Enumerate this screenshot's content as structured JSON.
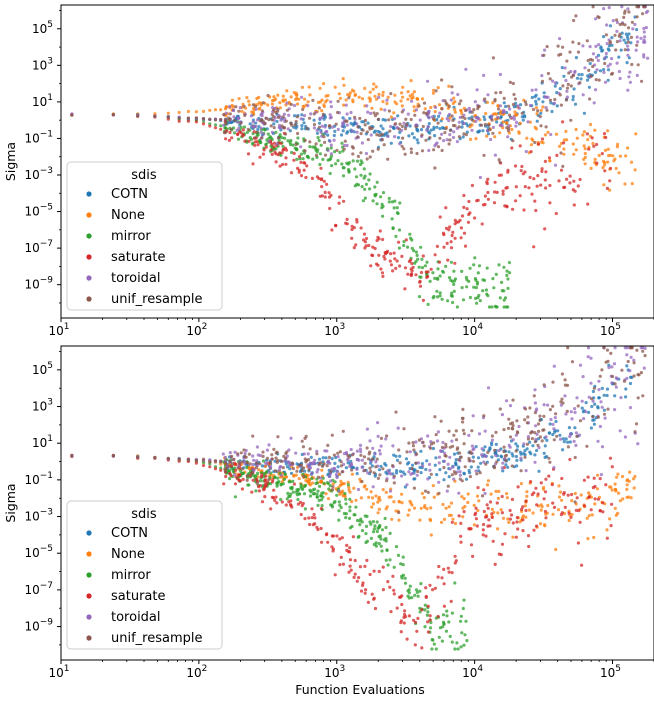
{
  "chart_data": [
    {
      "type": "scatter",
      "panel": "top",
      "xlabel": "",
      "ylabel": "Sigma",
      "xscale": "log",
      "yscale": "log",
      "xlim": [
        10,
        200000
      ],
      "ylim": [
        1.5e-11,
        2000000
      ],
      "x_ticks": [
        {
          "value": 10,
          "base": "10",
          "exp": "1"
        },
        {
          "value": 100,
          "base": "10",
          "exp": "2"
        },
        {
          "value": 1000,
          "base": "10",
          "exp": "3"
        },
        {
          "value": 10000,
          "base": "10",
          "exp": "4"
        },
        {
          "value": 100000,
          "base": "10",
          "exp": "5"
        }
      ],
      "y_ticks": [
        {
          "value": 1e-09,
          "base": "10",
          "exp": "−9"
        },
        {
          "value": 1e-07,
          "base": "10",
          "exp": "−7"
        },
        {
          "value": 1e-05,
          "base": "10",
          "exp": "−5"
        },
        {
          "value": 0.001,
          "base": "10",
          "exp": "−3"
        },
        {
          "value": 0.1,
          "base": "10",
          "exp": "−1"
        },
        {
          "value": 10,
          "base": "10",
          "exp": "1"
        },
        {
          "value": 1000,
          "base": "10",
          "exp": "3"
        },
        {
          "value": 100000,
          "base": "10",
          "exp": "5"
        }
      ],
      "grid": false,
      "legend": {
        "title": "sdis",
        "placement": "lower-left"
      },
      "series": [
        {
          "name": "COTN",
          "color": "#1f77b4",
          "values": [
            [
              12,
              2
            ],
            [
              30,
              2
            ],
            [
              100,
              1.2
            ],
            [
              300,
              0.6
            ],
            [
              1000,
              0.4
            ],
            [
              3000,
              0.3
            ],
            [
              10000,
              0.5
            ],
            [
              20000,
              1.5
            ],
            [
              50000,
              40
            ],
            [
              80000,
              1000
            ],
            [
              100000,
              10000
            ],
            [
              150000,
              50000
            ]
          ]
        },
        {
          "name": "None",
          "color": "#ff7f0e",
          "values": [
            [
              12,
              2
            ],
            [
              30,
              2
            ],
            [
              100,
              3
            ],
            [
              300,
              8
            ],
            [
              1000,
              15
            ],
            [
              2000,
              20
            ],
            [
              3000,
              22
            ],
            [
              5000,
              10
            ],
            [
              10000,
              2
            ],
            [
              20000,
              0.5
            ],
            [
              50000,
              0.05
            ],
            [
              100000,
              0.01
            ],
            [
              150000,
              0.005
            ]
          ]
        },
        {
          "name": "mirror",
          "color": "#2ca02c",
          "values": [
            [
              12,
              2
            ],
            [
              30,
              2
            ],
            [
              100,
              1
            ],
            [
              300,
              0.1
            ],
            [
              1000,
              0.01
            ],
            [
              2000,
              0.0001
            ],
            [
              3000,
              1e-06
            ],
            [
              4000,
              1e-08
            ],
            [
              5000,
              1e-09
            ],
            [
              8000,
              1e-09
            ],
            [
              12000,
              1e-09
            ],
            [
              18000,
              1e-09
            ]
          ]
        },
        {
          "name": "saturate",
          "color": "#d62728",
          "values": [
            [
              12,
              2
            ],
            [
              30,
              2
            ],
            [
              100,
              0.8
            ],
            [
              300,
              0.05
            ],
            [
              700,
              0.001
            ],
            [
              1000,
              1e-05
            ],
            [
              1500,
              1e-06
            ],
            [
              2000,
              1e-07
            ],
            [
              3000,
              1e-08
            ],
            [
              4000,
              1e-09
            ],
            [
              10000,
              0.0001
            ],
            [
              50000,
              0.001
            ],
            [
              100000,
              0.01
            ]
          ]
        },
        {
          "name": "toroidal",
          "color": "#9467bd",
          "values": [
            [
              12,
              2
            ],
            [
              30,
              2
            ],
            [
              100,
              1.2
            ],
            [
              300,
              0.8
            ],
            [
              1000,
              0.5
            ],
            [
              3000,
              0.5
            ],
            [
              10000,
              1
            ],
            [
              20000,
              5
            ],
            [
              50000,
              200
            ],
            [
              100000,
              20000
            ],
            [
              180000,
              80000
            ]
          ]
        },
        {
          "name": "unif_resample",
          "color": "#8c564b",
          "values": [
            [
              12,
              2
            ],
            [
              30,
              2
            ],
            [
              100,
              1.2
            ],
            [
              300,
              0.8
            ],
            [
              1000,
              0.5
            ],
            [
              3000,
              0.4
            ],
            [
              10000,
              0.8
            ],
            [
              20000,
              5
            ],
            [
              50000,
              300
            ],
            [
              100000,
              30000
            ],
            [
              180000,
              100000
            ]
          ]
        }
      ]
    },
    {
      "type": "scatter",
      "panel": "bottom",
      "xlabel": "Function Evaluations",
      "ylabel": "Sigma",
      "xscale": "log",
      "yscale": "log",
      "xlim": [
        10,
        200000
      ],
      "ylim": [
        1.5e-11,
        2000000
      ],
      "x_ticks": [
        {
          "value": 10,
          "base": "10",
          "exp": "1"
        },
        {
          "value": 100,
          "base": "10",
          "exp": "2"
        },
        {
          "value": 1000,
          "base": "10",
          "exp": "3"
        },
        {
          "value": 10000,
          "base": "10",
          "exp": "4"
        },
        {
          "value": 100000,
          "base": "10",
          "exp": "5"
        }
      ],
      "y_ticks": [
        {
          "value": 1e-09,
          "base": "10",
          "exp": "−9"
        },
        {
          "value": 1e-07,
          "base": "10",
          "exp": "−7"
        },
        {
          "value": 1e-05,
          "base": "10",
          "exp": "−5"
        },
        {
          "value": 0.001,
          "base": "10",
          "exp": "−3"
        },
        {
          "value": 0.1,
          "base": "10",
          "exp": "−1"
        },
        {
          "value": 10,
          "base": "10",
          "exp": "1"
        },
        {
          "value": 1000,
          "base": "10",
          "exp": "3"
        },
        {
          "value": 100000,
          "base": "10",
          "exp": "5"
        }
      ],
      "grid": false,
      "legend": {
        "title": "sdis",
        "placement": "lower-left"
      },
      "series": [
        {
          "name": "COTN",
          "color": "#1f77b4",
          "values": [
            [
              12,
              2
            ],
            [
              30,
              2
            ],
            [
              100,
              1.2
            ],
            [
              300,
              0.6
            ],
            [
              1000,
              0.5
            ],
            [
              3000,
              0.5
            ],
            [
              10000,
              0.8
            ],
            [
              20000,
              2
            ],
            [
              50000,
              50
            ],
            [
              80000,
              1000
            ],
            [
              100000,
              10000
            ],
            [
              150000,
              50000
            ]
          ]
        },
        {
          "name": "None",
          "color": "#ff7f0e",
          "values": [
            [
              12,
              2
            ],
            [
              30,
              2
            ],
            [
              100,
              1.2
            ],
            [
              300,
              0.3
            ],
            [
              1000,
              0.05
            ],
            [
              2000,
              0.01
            ],
            [
              3000,
              0.005
            ],
            [
              5000,
              0.003
            ],
            [
              10000,
              0.003
            ],
            [
              20000,
              0.002
            ],
            [
              50000,
              0.003
            ],
            [
              100000,
              0.005
            ],
            [
              150000,
              0.1
            ]
          ]
        },
        {
          "name": "mirror",
          "color": "#2ca02c",
          "values": [
            [
              12,
              2
            ],
            [
              30,
              2
            ],
            [
              100,
              1
            ],
            [
              300,
              0.1
            ],
            [
              1000,
              0.01
            ],
            [
              2000,
              0.0001
            ],
            [
              3000,
              1e-06
            ],
            [
              4000,
              1e-08
            ],
            [
              5000,
              1e-09
            ],
            [
              7000,
              1e-09
            ],
            [
              9000,
              1e-09
            ]
          ]
        },
        {
          "name": "saturate",
          "color": "#d62728",
          "values": [
            [
              12,
              2
            ],
            [
              30,
              2
            ],
            [
              100,
              0.8
            ],
            [
              300,
              0.05
            ],
            [
              700,
              0.001
            ],
            [
              1000,
              1e-05
            ],
            [
              1500,
              1e-06
            ],
            [
              2000,
              1e-07
            ],
            [
              3000,
              1e-08
            ],
            [
              4000,
              1e-09
            ],
            [
              10000,
              0.001
            ],
            [
              50000,
              0.003
            ],
            [
              100000,
              0.01
            ]
          ]
        },
        {
          "name": "toroidal",
          "color": "#9467bd",
          "values": [
            [
              12,
              2
            ],
            [
              30,
              2
            ],
            [
              100,
              1.2
            ],
            [
              300,
              0.8
            ],
            [
              1000,
              1
            ],
            [
              3000,
              1.5
            ],
            [
              10000,
              2
            ],
            [
              20000,
              10
            ],
            [
              50000,
              300
            ],
            [
              100000,
              30000
            ],
            [
              180000,
              100000
            ]
          ]
        },
        {
          "name": "unif_resample",
          "color": "#8c564b",
          "values": [
            [
              12,
              2
            ],
            [
              30,
              2
            ],
            [
              100,
              1.2
            ],
            [
              300,
              0.8
            ],
            [
              1000,
              1
            ],
            [
              3000,
              1.2
            ],
            [
              10000,
              2
            ],
            [
              20000,
              10
            ],
            [
              50000,
              500
            ],
            [
              100000,
              40000
            ],
            [
              180000,
              100000
            ]
          ]
        }
      ]
    }
  ]
}
